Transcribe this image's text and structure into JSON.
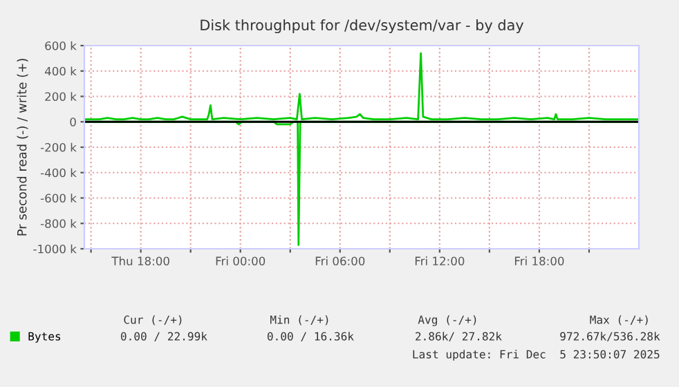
{
  "chart_data": {
    "type": "line",
    "title": "Disk throughput for /dev/system/var - by day",
    "ylabel": "Pr second read (-) / write (+)",
    "xlim": [
      "2025-12-04T14:36",
      "2025-12-06T00:00"
    ],
    "xticks": [
      {
        "value": "2025-12-04T15:00",
        "label": null
      },
      {
        "value": "2025-12-04T18:00",
        "label": "Thu 18:00"
      },
      {
        "value": "2025-12-04T21:00",
        "label": null
      },
      {
        "value": "2025-12-05T00:00",
        "label": "Fri 00:00"
      },
      {
        "value": "2025-12-05T03:00",
        "label": null
      },
      {
        "value": "2025-12-05T06:00",
        "label": "Fri 06:00"
      },
      {
        "value": "2025-12-05T09:00",
        "label": null
      },
      {
        "value": "2025-12-05T12:00",
        "label": "Fri 12:00"
      },
      {
        "value": "2025-12-05T15:00",
        "label": null
      },
      {
        "value": "2025-12-05T18:00",
        "label": "Fri 18:00"
      },
      {
        "value": "2025-12-05T21:00",
        "label": null
      }
    ],
    "ylim": [
      -1000000,
      600000
    ],
    "yticks": [
      {
        "value": -1000000,
        "label": "-1000 k"
      },
      {
        "value": -800000,
        "label": "-800 k"
      },
      {
        "value": -600000,
        "label": "-600 k"
      },
      {
        "value": -400000,
        "label": "-400 k"
      },
      {
        "value": -200000,
        "label": "-200 k"
      },
      {
        "value": 0,
        "label": "0"
      },
      {
        "value": 200000,
        "label": "200 k"
      },
      {
        "value": 400000,
        "label": "400 k"
      },
      {
        "value": 600000,
        "label": "600 k"
      }
    ],
    "grid": true,
    "legend": "bottom left",
    "line_style": "solid",
    "marker": "none",
    "ref_lines": [
      {
        "axis": "y",
        "value": 0,
        "color": "#000000"
      }
    ],
    "series": [
      {
        "name": "Bytes",
        "color": "#00cc00",
        "x": [
          "2025-12-04T14:36",
          "2025-12-04T15:30",
          "2025-12-04T16:00",
          "2025-12-04T16:30",
          "2025-12-04T17:00",
          "2025-12-04T17:30",
          "2025-12-04T18:00",
          "2025-12-04T18:30",
          "2025-12-04T19:00",
          "2025-12-04T19:30",
          "2025-12-04T20:00",
          "2025-12-04T20:30",
          "2025-12-04T21:00",
          "2025-12-04T21:30",
          "2025-12-04T22:00",
          "2025-12-04T22:06",
          "2025-12-04T22:12",
          "2025-12-04T22:18",
          "2025-12-04T23:00",
          "2025-12-05T00:00",
          "2025-12-05T01:00",
          "2025-12-05T02:00",
          "2025-12-05T03:00",
          "2025-12-05T03:24",
          "2025-12-05T03:34",
          "2025-12-05T03:42",
          "2025-12-05T04:30",
          "2025-12-05T05:30",
          "2025-12-05T06:30",
          "2025-12-05T07:00",
          "2025-12-05T07:12",
          "2025-12-05T07:24",
          "2025-12-05T08:00",
          "2025-12-05T09:00",
          "2025-12-05T10:00",
          "2025-12-05T10:42",
          "2025-12-05T10:52",
          "2025-12-05T11:00",
          "2025-12-05T11:30",
          "2025-12-05T12:30",
          "2025-12-05T13:30",
          "2025-12-05T14:30",
          "2025-12-05T15:30",
          "2025-12-05T16:30",
          "2025-12-05T17:30",
          "2025-12-05T18:30",
          "2025-12-05T18:54",
          "2025-12-05T19:00",
          "2025-12-05T19:06",
          "2025-12-05T20:00",
          "2025-12-05T21:00",
          "2025-12-05T22:00",
          "2025-12-05T23:00",
          "2025-12-06T00:00"
        ],
        "values": [
          20000,
          20000,
          30000,
          20000,
          20000,
          30000,
          20000,
          20000,
          30000,
          20000,
          20000,
          40000,
          20000,
          20000,
          20000,
          60000,
          130000,
          20000,
          30000,
          20000,
          30000,
          20000,
          30000,
          20000,
          220000,
          20000,
          30000,
          20000,
          30000,
          40000,
          60000,
          30000,
          20000,
          20000,
          30000,
          20000,
          540000,
          40000,
          20000,
          20000,
          30000,
          20000,
          20000,
          30000,
          20000,
          30000,
          20000,
          60000,
          20000,
          20000,
          30000,
          20000,
          20000,
          20000
        ]
      },
      {
        "color": "#00cc00",
        "x": [
          "2025-12-04T14:36",
          "2025-12-04T23:42",
          "2025-12-04T23:54",
          "2025-12-05T00:06",
          "2025-12-05T02:00",
          "2025-12-05T02:12",
          "2025-12-05T02:30",
          "2025-12-05T02:48",
          "2025-12-05T03:00",
          "2025-12-05T03:12",
          "2025-12-05T03:27",
          "2025-12-05T03:30",
          "2025-12-05T03:36",
          "2025-12-05T03:42",
          "2025-12-06T00:00"
        ],
        "values": [
          0,
          0,
          -20000,
          0,
          0,
          -20000,
          -20000,
          -20000,
          -20000,
          0,
          0,
          -970000,
          0,
          0,
          0
        ]
      }
    ],
    "annotations": [
      "Cur (-/+)",
      "Min (-/+)",
      "Avg (-/+)",
      "Max (-/+)",
      "0.00 / 22.99k",
      "0.00 / 16.36k",
      "2.86k/ 27.82k",
      "972.67k/536.28k",
      "Last update: Fri Dec  5 23:50:07 2025"
    ]
  }
}
